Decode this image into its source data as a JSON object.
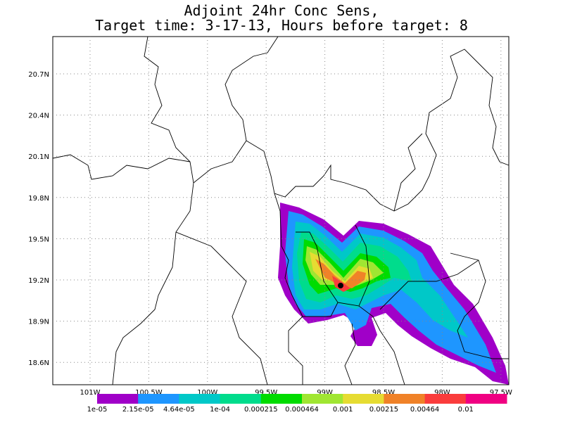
{
  "header": {
    "title_line1": "Adjoint 24hr Conc Sens,",
    "title_line2": "Target time: 3-17-13, Hours before target: 8"
  },
  "map": {
    "lat_labels": [
      "20.7N",
      "20.4N",
      "20.1N",
      "19.8N",
      "19.5N",
      "19.2N",
      "18.9N",
      "18.6N"
    ],
    "lon_labels": [
      "101W",
      "100.5W",
      "100W",
      "99.5W",
      "99W",
      "98.5W",
      "98W",
      "97.5W"
    ]
  },
  "colorbar": {
    "colors": [
      "#a000c8",
      "#1e96ff",
      "#00c8c8",
      "#00dc8c",
      "#00dc00",
      "#a0e632",
      "#e6dc32",
      "#f08228",
      "#fa3c3c",
      "#f00082"
    ],
    "labels": [
      "1e-05",
      "2.15e-05",
      "4.64e-05",
      "1e-04",
      "0.000215",
      "0.000464",
      "0.001",
      "0.00215",
      "0.00464",
      "0.01"
    ]
  }
}
